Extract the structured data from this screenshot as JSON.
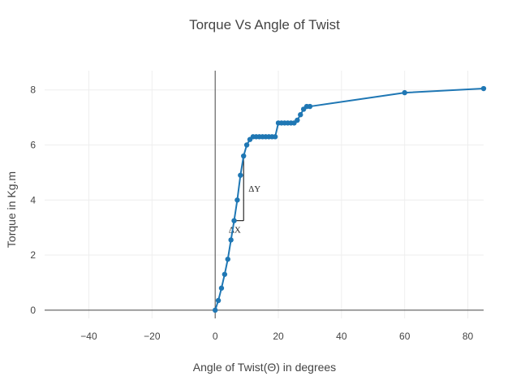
{
  "chart_data": {
    "type": "line",
    "title": "Torque Vs Angle of Twist",
    "xlabel": "Angle of Twist(Θ) in degrees",
    "ylabel": "Torque in Kg.m",
    "xlim": [
      -54,
      85
    ],
    "ylim": [
      -0.3,
      8.7
    ],
    "xticks": [
      -40,
      -20,
      0,
      20,
      40,
      60,
      80
    ],
    "yticks": [
      0,
      2,
      4,
      6,
      8
    ],
    "grid": true,
    "legend": "none",
    "color": "#1f77b4",
    "series": [
      {
        "x": [
          0,
          1,
          2,
          3,
          4,
          5,
          6,
          7,
          8,
          9,
          10,
          11,
          12,
          13,
          14,
          15,
          16,
          17,
          18,
          19,
          20,
          21,
          22,
          23,
          24,
          25,
          26,
          27,
          28,
          29,
          30,
          60,
          85
        ],
        "y": [
          0,
          0.35,
          0.8,
          1.3,
          1.85,
          2.55,
          3.25,
          4.0,
          4.9,
          5.6,
          6.0,
          6.2,
          6.3,
          6.3,
          6.3,
          6.3,
          6.3,
          6.3,
          6.3,
          6.3,
          6.8,
          6.8,
          6.8,
          6.8,
          6.8,
          6.8,
          6.9,
          7.1,
          7.3,
          7.4,
          7.4,
          7.9,
          8.05
        ]
      }
    ],
    "annotations": [
      {
        "text": "ΔX",
        "x0": 6,
        "y0": 3.25,
        "x1": 9,
        "y1": 5.6
      },
      {
        "text": "ΔY",
        "x0": 6,
        "y0": 3.25,
        "x1": 9,
        "y1": 5.6
      }
    ]
  }
}
